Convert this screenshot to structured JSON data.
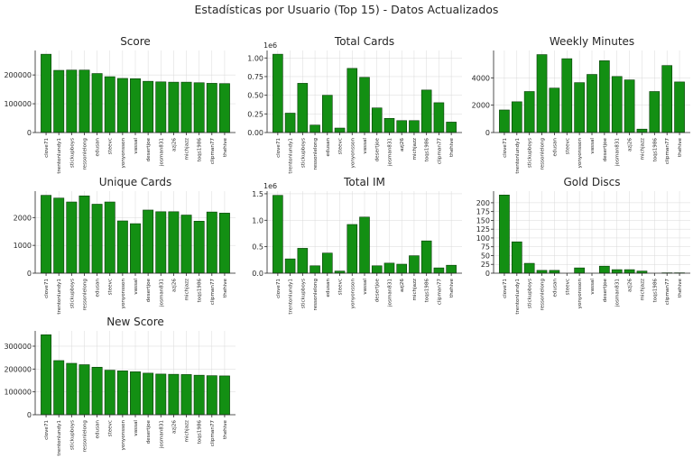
{
  "title": "Estadísticas por Usuario (Top 15) - Datos Actualizados",
  "colors": {
    "bar": "#138f13",
    "bar_edge": "#0a3d0a",
    "grid": "#d9d9d9"
  },
  "chart_data": [
    {
      "type": "bar",
      "title": "Score",
      "categories": [
        "clove71",
        "trentonlundy1",
        "stickupboys",
        "ressonlelong",
        "edusan",
        "steevc",
        "yonyonsson",
        "vassal",
        "desertjoe",
        "josman831",
        "azj26",
        "michjazz",
        "toqs1986",
        "clipman77",
        "thehive"
      ],
      "values": [
        272000,
        216000,
        217000,
        217000,
        205000,
        194000,
        188000,
        187000,
        178000,
        176000,
        175000,
        175000,
        173000,
        171000,
        170000
      ],
      "ylim": [
        0,
        285000
      ],
      "yticks": [
        0,
        100000,
        200000
      ],
      "ytick_labels": [
        "0",
        "100000",
        "200000"
      ],
      "offset_text": ""
    },
    {
      "type": "bar",
      "title": "Total Cards",
      "categories": [
        "clove71",
        "trentonlundy1",
        "stickupboys",
        "ressonlelong",
        "edusan",
        "steevc",
        "yonyonsson",
        "vassal",
        "desertjoe",
        "josman831",
        "azj26",
        "michjazz",
        "toqs1986",
        "clipman77",
        "thehive"
      ],
      "values": [
        1050000,
        260000,
        660000,
        100000,
        500000,
        60000,
        860000,
        740000,
        330000,
        190000,
        160000,
        160000,
        570000,
        400000,
        140000
      ],
      "ylim": [
        0,
        1100000
      ],
      "yticks": [
        0,
        250000,
        500000,
        750000,
        1000000
      ],
      "ytick_labels": [
        "0.00",
        "0.25",
        "0.50",
        "0.75",
        "1.00"
      ],
      "offset_text": "1e6"
    },
    {
      "type": "bar",
      "title": "Weekly Minutes",
      "categories": [
        "clove71",
        "trentonlundy1",
        "stickupboys",
        "ressonlelong",
        "edusan",
        "steevc",
        "yonyonsson",
        "vassal",
        "desertjoe",
        "josman831",
        "azj26",
        "michjazz",
        "toqs1986",
        "clipman77",
        "thehive"
      ],
      "values": [
        1650,
        2250,
        3000,
        5700,
        3250,
        5400,
        3650,
        4250,
        5250,
        4100,
        3850,
        250,
        3000,
        4900,
        3700
      ],
      "ylim": [
        0,
        6000
      ],
      "yticks": [
        0,
        2000,
        4000
      ],
      "ytick_labels": [
        "0",
        "2000",
        "4000"
      ],
      "offset_text": ""
    },
    {
      "type": "bar",
      "title": "Unique Cards",
      "categories": [
        "clove71",
        "trentonlundy1",
        "stickupboys",
        "ressonlelong",
        "edusan",
        "steevc",
        "yonyonsson",
        "vassal",
        "desertjoe",
        "josman831",
        "azj26",
        "michjazz",
        "toqs1986",
        "clipman77",
        "thehive"
      ],
      "values": [
        2800,
        2700,
        2560,
        2780,
        2480,
        2560,
        1880,
        1780,
        2270,
        2210,
        2210,
        2090,
        1870,
        2200,
        2160
      ],
      "ylim": [
        0,
        2950
      ],
      "yticks": [
        0,
        1000,
        2000
      ],
      "ytick_labels": [
        "0",
        "1000",
        "2000"
      ],
      "offset_text": ""
    },
    {
      "type": "bar",
      "title": "Total IM",
      "categories": [
        "clove71",
        "trentonlundy1",
        "stickupboys",
        "ressonlelong",
        "edusan",
        "steevc",
        "yonyonsson",
        "vassal",
        "desertjoe",
        "josman831",
        "azj26",
        "michjazz",
        "toqs1986",
        "clipman77",
        "thehive"
      ],
      "values": [
        1470000,
        270000,
        470000,
        140000,
        380000,
        40000,
        920000,
        1060000,
        140000,
        190000,
        170000,
        330000,
        610000,
        100000,
        150000
      ],
      "ylim": [
        0,
        1550000
      ],
      "yticks": [
        0,
        500000,
        1000000,
        1500000
      ],
      "ytick_labels": [
        "0.0",
        "0.5",
        "1.0",
        "1.5"
      ],
      "offset_text": "1e6"
    },
    {
      "type": "bar",
      "title": "Gold Discs",
      "categories": [
        "clove71",
        "trentonlundy1",
        "stickupboys",
        "ressonlelong",
        "edusan",
        "steevc",
        "yonyonsson",
        "vassal",
        "desertjoe",
        "josman831",
        "azj26",
        "michjazz",
        "toqs1986",
        "clipman77",
        "thehive"
      ],
      "values": [
        222,
        89,
        28,
        8,
        8,
        0,
        15,
        0,
        20,
        10,
        10,
        6,
        0,
        1,
        1
      ],
      "ylim": [
        0,
        233
      ],
      "yticks": [
        0,
        25,
        50,
        75,
        100,
        125,
        150,
        175,
        200
      ],
      "ytick_labels": [
        "0",
        "25",
        "50",
        "75",
        "100",
        "125",
        "150",
        "175",
        "200"
      ],
      "offset_text": ""
    },
    {
      "type": "bar",
      "title": "New Score",
      "categories": [
        "clove71",
        "trentonlundy1",
        "stickupboys",
        "ressonlelong",
        "edusan",
        "steevc",
        "yonyonsson",
        "vassal",
        "desertjoe",
        "josman831",
        "azj26",
        "michjazz",
        "toqs1986",
        "clipman77",
        "thehive"
      ],
      "values": [
        350000,
        237000,
        225000,
        219000,
        208000,
        195000,
        192000,
        188000,
        182000,
        178000,
        177000,
        176000,
        173000,
        171000,
        170000
      ],
      "ylim": [
        0,
        367000
      ],
      "yticks": [
        0,
        100000,
        200000,
        300000
      ],
      "ytick_labels": [
        "0",
        "100000",
        "200000",
        "300000"
      ],
      "offset_text": ""
    }
  ]
}
